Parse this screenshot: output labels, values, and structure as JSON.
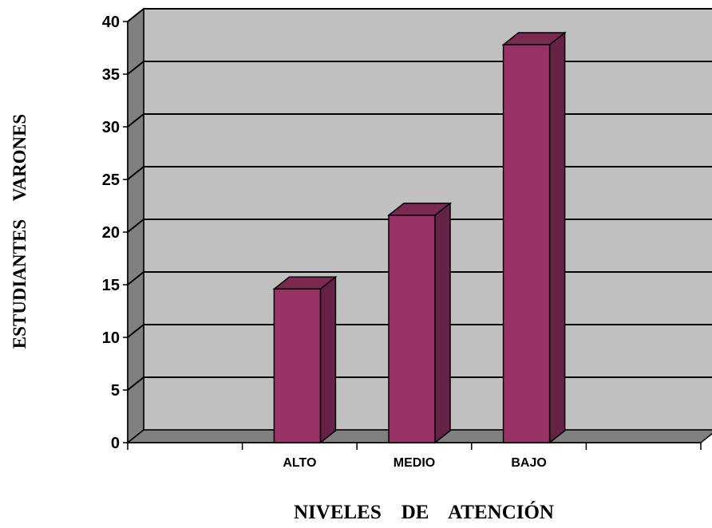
{
  "chart_data": {
    "type": "bar",
    "style": "3d-column",
    "categories": [
      "",
      "ALTO",
      "MEDIO",
      "BAJO",
      ""
    ],
    "values": [
      null,
      14.6,
      21.6,
      37.8,
      null
    ],
    "xlabel": "NIVELES    DE    ATENCIÓN",
    "ylabel": "ESTUDIANTES    VARONES",
    "ylim": [
      0,
      40
    ],
    "yticks": [
      0,
      5,
      10,
      15,
      20,
      25,
      30,
      35,
      40
    ],
    "grid": true,
    "legend": "none",
    "colors": {
      "bar_front": "#993366",
      "bar_side": "#662244",
      "bar_top": "#7a2950",
      "plot_back": "#c0c0c0",
      "plot_wall": "#808080",
      "plot_floor": "#808080"
    }
  }
}
